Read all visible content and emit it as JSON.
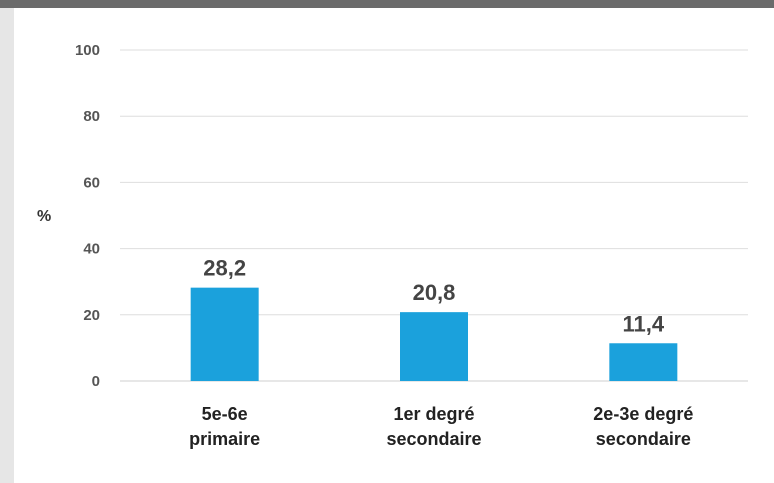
{
  "chart_data": {
    "type": "bar",
    "categories": [
      [
        "5e-6e",
        "primaire"
      ],
      [
        "1er degré",
        "secondaire"
      ],
      [
        "2e-3e degré",
        "secondaire"
      ]
    ],
    "values": [
      28.2,
      20.8,
      11.4
    ],
    "value_labels": [
      "28,2",
      "20,8",
      "11,4"
    ],
    "ylabel": "%",
    "ylim": [
      0,
      100
    ],
    "yticks": [
      0,
      20,
      40,
      60,
      80,
      100
    ],
    "grid": true,
    "bar_color": "#1ba1dc"
  }
}
